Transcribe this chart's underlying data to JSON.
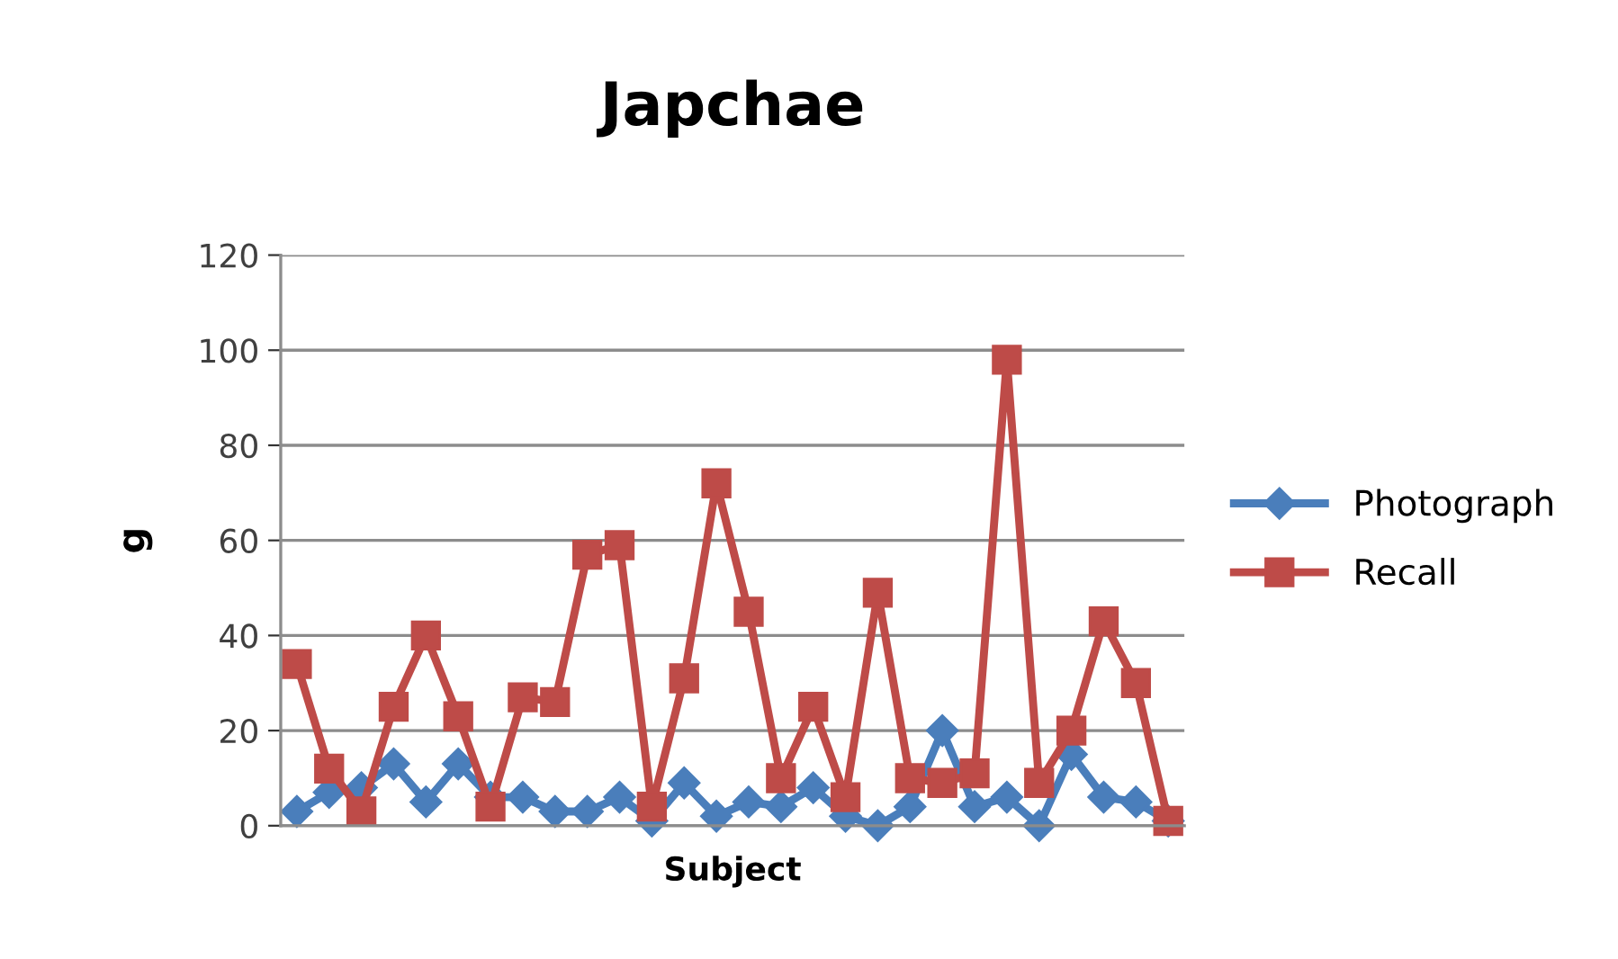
{
  "chart_data": {
    "type": "line",
    "title": "Japchae",
    "xlabel": "Subject",
    "ylabel": "g",
    "categories": [
      null,
      null,
      null,
      null,
      null,
      null,
      null,
      null,
      null,
      null,
      null,
      null,
      null,
      null,
      null,
      null,
      null,
      null,
      null,
      null,
      null,
      null,
      null,
      null,
      null,
      null,
      null,
      null
    ],
    "series": [
      {
        "name": "Photograph",
        "color": "#4a7ebb",
        "marker": "diamond",
        "values": [
          3,
          7,
          8,
          13,
          5,
          13,
          6,
          6,
          3,
          3,
          6,
          1,
          9,
          2,
          5,
          4,
          8,
          2,
          0,
          4,
          20,
          4,
          6,
          0,
          15,
          6,
          5,
          1
        ]
      },
      {
        "name": "Recall",
        "color": "#be4b48",
        "marker": "square",
        "values": [
          34,
          12,
          3,
          25,
          40,
          23,
          4,
          27,
          26,
          57,
          59,
          4,
          31,
          72,
          45,
          10,
          25,
          6,
          49,
          10,
          9,
          11,
          98,
          9,
          20,
          43,
          30,
          1
        ]
      }
    ],
    "ylim": [
      0,
      120
    ],
    "yticks": [
      0,
      20,
      40,
      60,
      80,
      100,
      120
    ],
    "grid": "y",
    "legend": "right",
    "tick_labels": "y",
    "line_style": "solid"
  }
}
